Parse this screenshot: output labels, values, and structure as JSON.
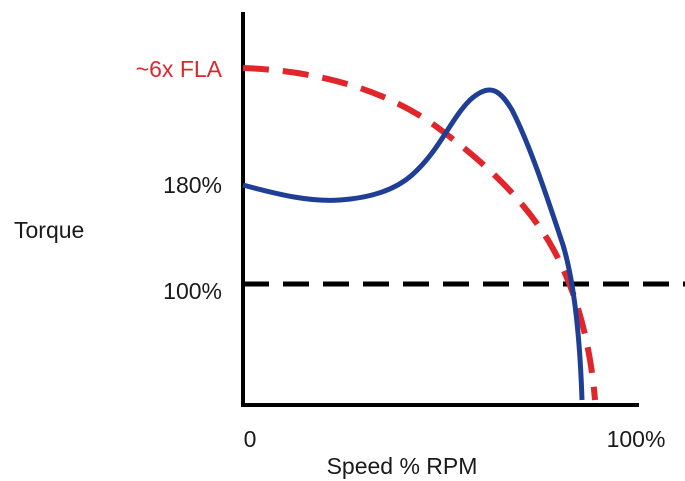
{
  "y_axis": {
    "title": "Torque",
    "labels": [
      "~6x FLA",
      "180%",
      "100%"
    ]
  },
  "x_axis": {
    "title": "Speed % RPM",
    "labels": [
      "0",
      "100%"
    ]
  }
}
